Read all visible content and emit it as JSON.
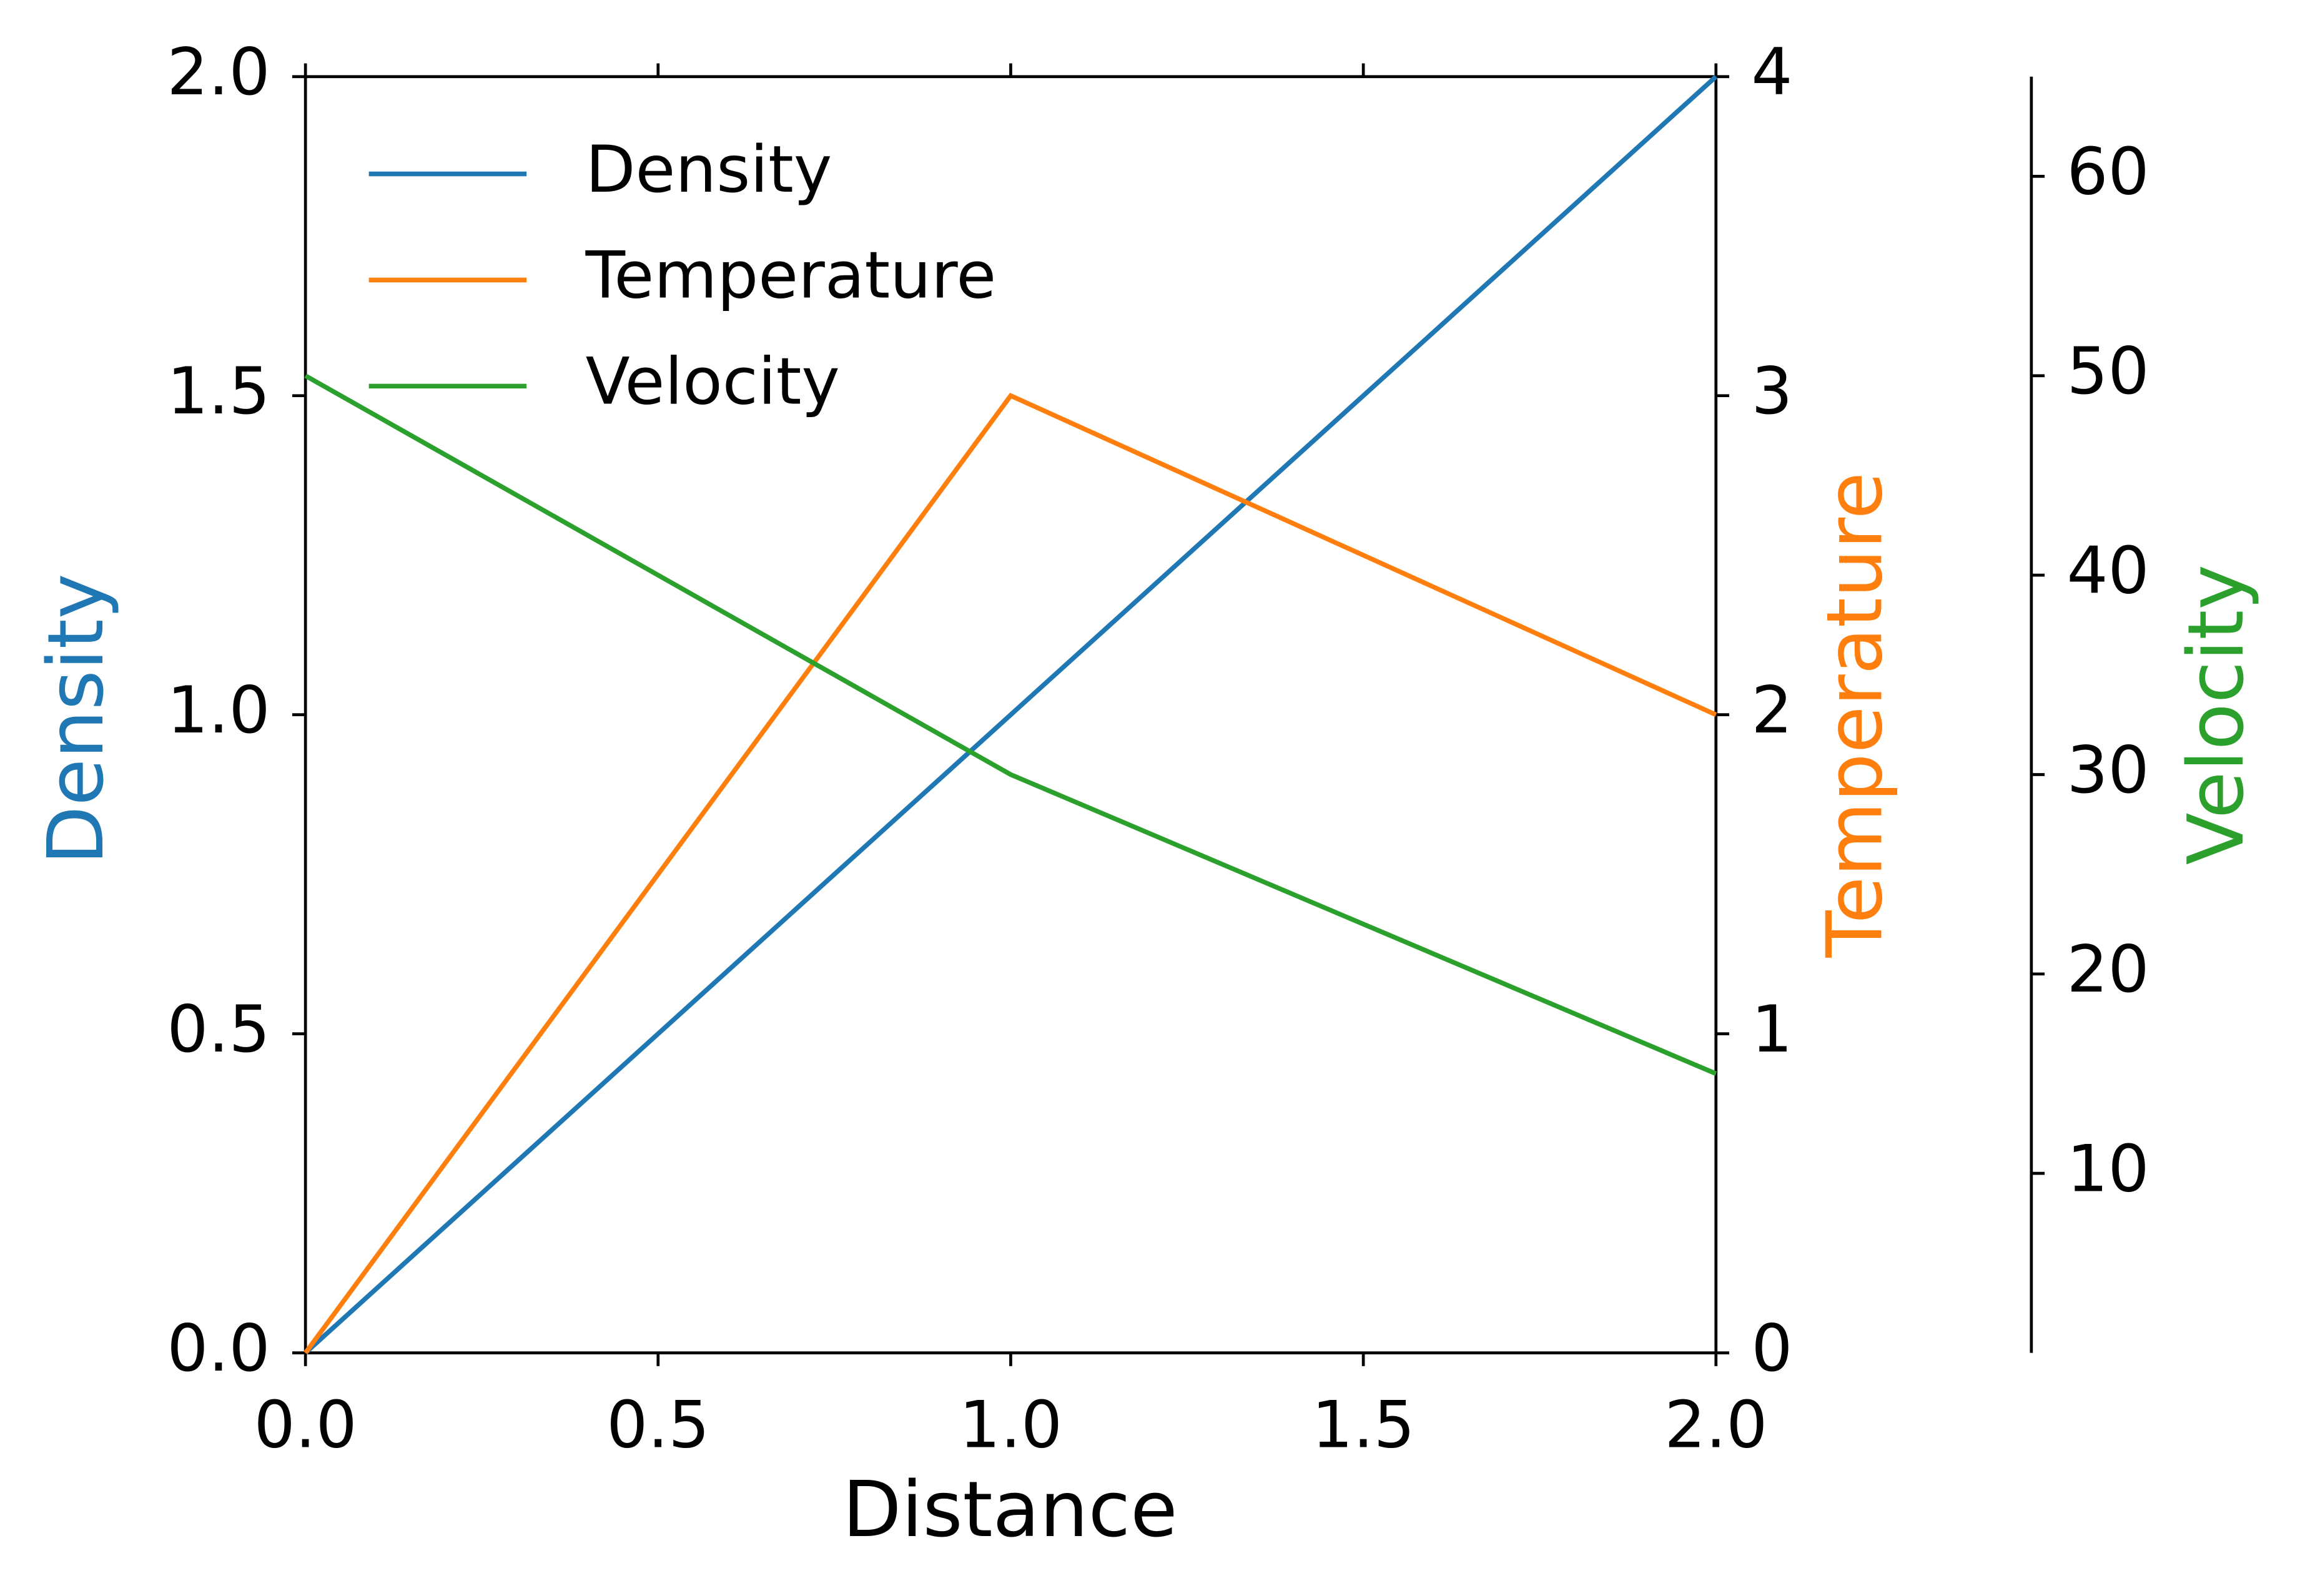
{
  "chart_data": {
    "type": "line",
    "xlabel": "Distance",
    "ylabel": "Density",
    "y2label": "Temperature",
    "y3label": "Velocity",
    "x": [
      0,
      1,
      2
    ],
    "series": [
      {
        "name": "Density",
        "color": "#1f77b4",
        "values": [
          0,
          1,
          2
        ],
        "axis": "y"
      },
      {
        "name": "Temperature",
        "color": "#ff7f0e",
        "values": [
          0,
          3,
          2
        ],
        "axis": "y2"
      },
      {
        "name": "Velocity",
        "color": "#2ca02c",
        "values": [
          50,
          30,
          15
        ],
        "axis": "y3"
      }
    ],
    "xlim": [
      0,
      2
    ],
    "xticks": [
      {
        "value": 0,
        "label": "0.0"
      },
      0.5,
      {
        "value": 1,
        "label": "1.0"
      },
      1.5,
      {
        "value": 2,
        "label": "2.0"
      }
    ],
    "ylim": [
      0,
      2
    ],
    "yticks": [
      {
        "value": 0,
        "label": "0.0"
      },
      0.5,
      {
        "value": 1,
        "label": "1.0"
      },
      1.5,
      {
        "value": 2,
        "label": "2.0"
      }
    ],
    "y2lim": [
      0,
      4
    ],
    "y2ticks": [
      0,
      1,
      2,
      3,
      4
    ],
    "y3lim": [
      1,
      65
    ],
    "y3ticks": [
      10,
      20,
      30,
      40,
      50,
      60
    ],
    "legend": "upper left",
    "grid": false
  }
}
